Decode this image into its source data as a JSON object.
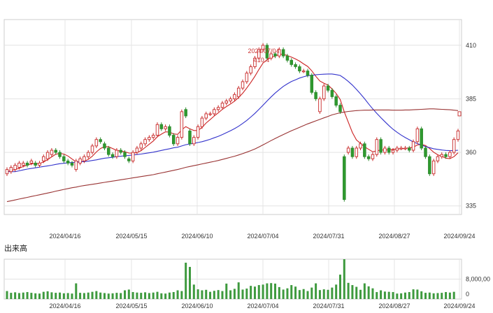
{
  "chart_data": [
    {
      "type": "candlestick",
      "title": "",
      "x_tick_labels": [
        "2024/04/16",
        "2024/05/15",
        "2024/06/10",
        "2024/07/04",
        "2024/07/31",
        "2024/08/27",
        "2024/09/24"
      ],
      "y_tick_labels": [
        "335",
        "360",
        "385",
        "410"
      ],
      "ylim": [
        331,
        422
      ],
      "grid": true,
      "annotation": {
        "date": "2024/07/04",
        "value": "410.4"
      },
      "candles": [
        [
          350,
          352
        ],
        [
          351,
          353
        ],
        [
          352,
          354
        ],
        [
          353,
          355
        ],
        [
          354,
          355
        ],
        [
          355,
          354
        ],
        [
          355,
          356
        ],
        [
          355,
          354
        ],
        [
          354,
          355
        ],
        [
          356,
          358
        ],
        [
          357,
          360
        ],
        [
          359,
          361
        ],
        [
          361,
          360
        ],
        [
          360,
          358
        ],
        [
          358,
          356
        ],
        [
          356,
          355
        ],
        [
          355,
          354
        ],
        [
          352,
          356
        ],
        [
          355,
          357
        ],
        [
          356,
          358
        ],
        [
          358,
          360
        ],
        [
          360,
          363
        ],
        [
          363,
          366
        ],
        [
          366,
          365
        ],
        [
          364,
          362
        ],
        [
          362,
          359
        ],
        [
          359,
          358
        ],
        [
          358,
          361
        ],
        [
          361,
          360
        ],
        [
          360,
          358
        ],
        [
          357,
          356
        ],
        [
          356,
          360
        ],
        [
          360,
          362
        ],
        [
          362,
          364
        ],
        [
          364,
          366
        ],
        [
          366,
          367
        ],
        [
          367,
          368
        ],
        [
          368,
          373
        ],
        [
          373,
          371
        ],
        [
          371,
          372
        ],
        [
          372,
          368
        ],
        [
          368,
          364
        ],
        [
          364,
          367
        ],
        [
          367,
          379
        ],
        [
          380,
          377
        ],
        [
          370,
          364
        ],
        [
          364,
          367
        ],
        [
          367,
          372
        ],
        [
          372,
          376
        ],
        [
          376,
          378
        ],
        [
          378,
          378
        ],
        [
          378,
          380
        ],
        [
          380,
          381
        ],
        [
          381,
          383
        ],
        [
          383,
          384
        ],
        [
          384,
          385
        ],
        [
          385,
          387
        ],
        [
          386,
          390
        ],
        [
          390,
          393
        ],
        [
          393,
          397
        ],
        [
          397,
          400
        ],
        [
          400,
          404
        ],
        [
          404,
          408
        ],
        [
          408,
          410
        ],
        [
          410,
          404
        ],
        [
          404,
          406
        ],
        [
          406,
          405
        ],
        [
          405,
          408
        ],
        [
          408,
          405
        ],
        [
          405,
          403
        ],
        [
          403,
          401
        ],
        [
          401,
          400
        ],
        [
          400,
          398
        ],
        [
          398,
          398
        ],
        [
          398,
          396
        ],
        [
          396,
          388
        ],
        [
          388,
          385
        ],
        [
          379,
          385
        ],
        [
          385,
          391
        ],
        [
          391,
          389
        ],
        [
          389,
          386
        ],
        [
          386,
          382
        ],
        [
          382,
          379
        ],
        [
          358,
          338
        ],
        [
          360,
          362
        ],
        [
          362,
          358
        ],
        [
          358,
          362
        ],
        [
          362,
          364
        ],
        [
          364,
          358
        ],
        [
          358,
          357
        ],
        [
          357,
          359
        ],
        [
          359,
          366
        ],
        [
          366,
          360
        ],
        [
          360,
          362
        ],
        [
          362,
          360
        ],
        [
          360,
          361
        ],
        [
          361,
          362
        ],
        [
          362,
          362
        ],
        [
          362,
          362
        ],
        [
          362,
          361
        ],
        [
          361,
          365
        ],
        [
          365,
          371
        ],
        [
          371,
          362
        ],
        [
          362,
          358
        ],
        [
          358,
          350
        ],
        [
          350,
          356
        ],
        [
          356,
          358
        ],
        [
          358,
          359
        ],
        [
          359,
          358
        ],
        [
          358,
          360
        ],
        [
          360,
          366
        ],
        [
          366,
          370
        ]
      ],
      "series": [
        {
          "name": "",
          "color": "#cc2222",
          "values": [
            351,
            351.5,
            352,
            352.6,
            353.4,
            354.1,
            354.6,
            354.8,
            354.8,
            355.5,
            356.6,
            357.9,
            359.1,
            359.5,
            359.2,
            358.3,
            356.9,
            355.6,
            355.5,
            355.9,
            356.7,
            358.2,
            360.2,
            361.8,
            362.7,
            362.6,
            361.8,
            360.9,
            360.6,
            360.3,
            359.7,
            359.6,
            359.9,
            360.8,
            362.3,
            363.8,
            365.3,
            367.3,
            368.5,
            369.6,
            369.5,
            368.6,
            368.4,
            370.6,
            372,
            371,
            370.2,
            370.2,
            371.6,
            373.7,
            375.3,
            377,
            378.5,
            380.1,
            381.4,
            382.6,
            383.9,
            385.6,
            387.6,
            390,
            392.6,
            395.5,
            398.7,
            401.7,
            403.2,
            404.4,
            404.9,
            405.8,
            405.8,
            405.2,
            404.5,
            403.6,
            402.6,
            401.3,
            400.1,
            398.1,
            395.5,
            393.3,
            392.3,
            391.4,
            389.6,
            387.5,
            384.7,
            378.9,
            374.1,
            369.3,
            365.8,
            364.2,
            362.6,
            361.4,
            360.3,
            360.7,
            361.1,
            361.1,
            361.2,
            361.4,
            361.6,
            361.7,
            361.9,
            362.1,
            362.4,
            363.5,
            363.7,
            363.2,
            361.8,
            360.1,
            358.9,
            358.1,
            357.3,
            357.1,
            358,
            359.8
          ]
        },
        {
          "name": "",
          "color": "#3333cc",
          "values": [
            351,
            351,
            351,
            351.4,
            351.8,
            352.2,
            352.5,
            352.8,
            353.1,
            353.4,
            353.7,
            354,
            354.4,
            354.7,
            354.9,
            355.1,
            355.3,
            355.4,
            355.6,
            355.7,
            355.9,
            356.2,
            356.5,
            356.9,
            357.3,
            357.5,
            357.7,
            358,
            358.2,
            358.4,
            358.6,
            358.8,
            359,
            359.2,
            359.5,
            359.8,
            360.1,
            360.5,
            360.9,
            361.3,
            361.7,
            362.1,
            362.4,
            363,
            363.6,
            363.9,
            364.2,
            364.6,
            365,
            365.5,
            366.1,
            366.8,
            367.5,
            368.3,
            369.2,
            370.1,
            371.1,
            372.2,
            373.5,
            374.9,
            376.5,
            378.2,
            380.1,
            382,
            384,
            385.9,
            387.7,
            389.3,
            390.8,
            392,
            393.1,
            393.9,
            394.7,
            395.3,
            395.8,
            396,
            396.2,
            396.4,
            396.5,
            396.6,
            396.6,
            396.3,
            395.9,
            394.6,
            393.1,
            391.4,
            389.4,
            387.3,
            385,
            382.6,
            380.3,
            378.2,
            376.2,
            374.3,
            372.5,
            370.8,
            369.4,
            368.1,
            366.9,
            365.9,
            364.9,
            364.1,
            363.4,
            362.7,
            362.2,
            361.7,
            361.4,
            361.1,
            360.9,
            360.8,
            360.8,
            361
          ]
        },
        {
          "name": "",
          "color": "#993333",
          "values": [
            337,
            337.4,
            337.8,
            338.2,
            338.6,
            339,
            339.4,
            339.8,
            340.2,
            340.6,
            341,
            341.4,
            341.9,
            342.3,
            342.7,
            343.1,
            343.5,
            343.8,
            344.2,
            344.5,
            344.8,
            345.1,
            345.4,
            345.7,
            346,
            346.3,
            346.6,
            346.9,
            347.2,
            347.5,
            347.8,
            348.1,
            348.4,
            348.7,
            349,
            349.3,
            349.6,
            350,
            350.4,
            350.8,
            351.2,
            351.6,
            352,
            352.5,
            353,
            353.4,
            353.8,
            354.2,
            354.6,
            355,
            355.4,
            355.8,
            356.2,
            356.7,
            357.2,
            357.7,
            358.2,
            358.8,
            359.4,
            360.1,
            360.8,
            361.6,
            362.5,
            363.5,
            364.5,
            365.5,
            366.5,
            367.4,
            368.3,
            369.2,
            370.1,
            370.9,
            371.7,
            372.5,
            373.3,
            374,
            374.7,
            375.4,
            376.1,
            376.8,
            377.5,
            378,
            378.5,
            378.8,
            379.1,
            379.3,
            379.5,
            379.6,
            379.7,
            379.7,
            379.8,
            379.8,
            379.8,
            379.8,
            379.8,
            379.7,
            379.7,
            379.7,
            379.8,
            379.8,
            379.9,
            380,
            380.1,
            380.2,
            380.3,
            380.3,
            380.2,
            380.1,
            380,
            379.9,
            379.7,
            379.5
          ]
        }
      ],
      "last_marker": 378
    },
    {
      "type": "bar",
      "title": "出来高",
      "x_tick_labels": [
        "2024/04/16",
        "2024/05/15",
        "2024/06/10",
        "2024/07/04",
        "2024/07/31",
        "2024/08/27",
        "2024/09/24"
      ],
      "y_tick_labels": [
        "8,000,00",
        "0"
      ],
      "ylim": [
        0,
        16000000
      ],
      "values": [
        3200000,
        2500000,
        2700000,
        2400000,
        2600000,
        2800000,
        2500000,
        2300000,
        2200000,
        2900000,
        3100000,
        2700000,
        2500000,
        2600000,
        2300000,
        2400000,
        2200000,
        6300000,
        2500000,
        2400000,
        2600000,
        2900000,
        3200000,
        2600000,
        2400000,
        2200000,
        2300000,
        2500000,
        2400000,
        3500000,
        3800000,
        2800000,
        2600000,
        2500000,
        2700000,
        2400000,
        2600000,
        2900000,
        2300000,
        2200000,
        2600000,
        2800000,
        3500000,
        3200000,
        14600000,
        12900000,
        5800000,
        3900000,
        3500000,
        3700000,
        2900000,
        3300000,
        3600000,
        3200000,
        6200000,
        3500000,
        4100000,
        6700000,
        3800000,
        4200000,
        5300000,
        5000000,
        5600000,
        5800000,
        6300000,
        6400000,
        6200000,
        4800000,
        3800000,
        4300000,
        5600000,
        5000000,
        3600000,
        4000000,
        3200000,
        4600000,
        6300000,
        3600000,
        3900000,
        3700000,
        4600000,
        5800000,
        9800000,
        16000000,
        6500000,
        5600000,
        4900000,
        3700000,
        6300000,
        5100000,
        4300000,
        2800000,
        3500000,
        3000000,
        2900000,
        2800000,
        2200000,
        2300000,
        2600000,
        2800000,
        3900000,
        3800000,
        3100000,
        2500000,
        2600000,
        2300000,
        2400000,
        2500000,
        2800000,
        2600000,
        2900000
      ]
    }
  ]
}
